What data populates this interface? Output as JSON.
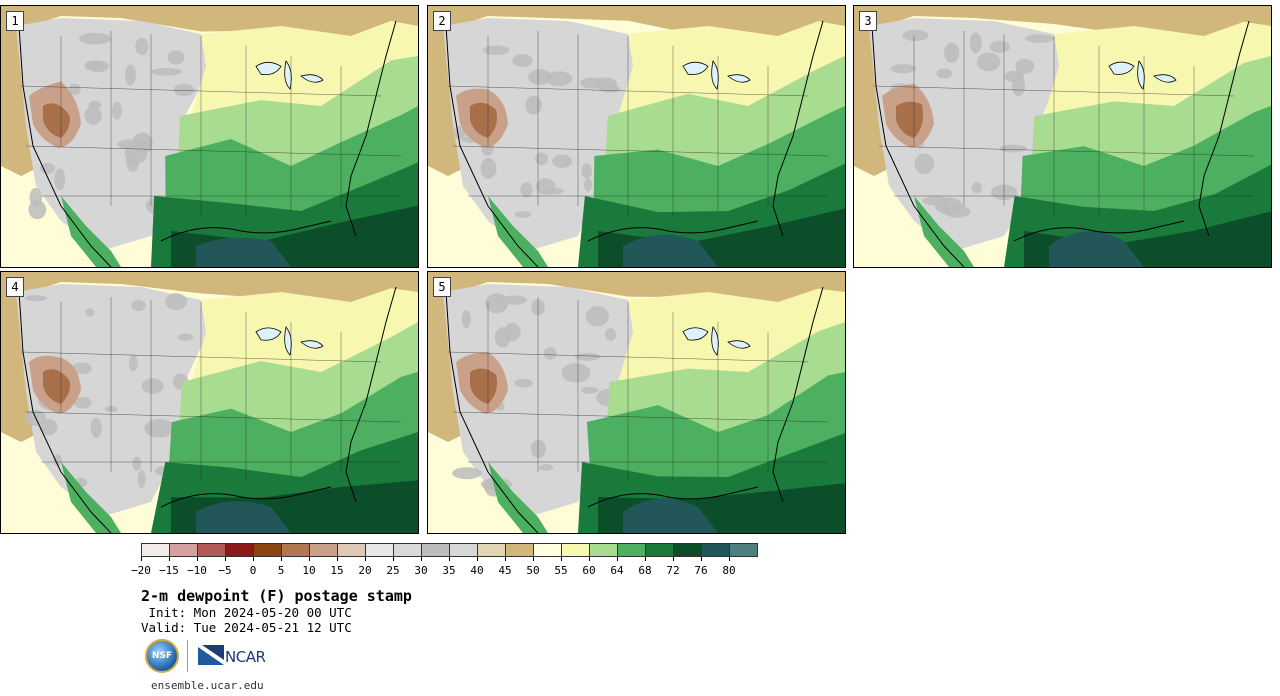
{
  "panels": [
    {
      "label": "1"
    },
    {
      "label": "2"
    },
    {
      "label": "3"
    },
    {
      "label": "4"
    },
    {
      "label": "5"
    }
  ],
  "colorbar": {
    "colors": [
      "#f4ebeb",
      "#d4a0a0",
      "#b35a5a",
      "#8c1a1a",
      "#8b4513",
      "#b07850",
      "#c9a088",
      "#e0c8b8",
      "#e8e8e8",
      "#dadada",
      "#bcbcbc",
      "#d8d8d8",
      "#e2d5b5",
      "#d2b77c",
      "#fffee0",
      "#f7f7b0",
      "#a8dc90",
      "#4cb060",
      "#1a7a3c",
      "#0c4e2a",
      "#225658",
      "#4d7e80"
    ],
    "ticks": [
      "−20",
      "−15",
      "−10",
      "−5",
      "0",
      "5",
      "10",
      "15",
      "20",
      "25",
      "30",
      "35",
      "40",
      "45",
      "50",
      "55",
      "60",
      "64",
      "68",
      "72",
      "76",
      "80"
    ]
  },
  "title": "2-m dewpoint (F) postage stamp",
  "init_line": " Init: Mon 2024-05-20 00 UTC",
  "valid_line": "Valid: Tue 2024-05-21 12 UTC",
  "logos": {
    "nsf": "NSF",
    "ncar": "NCAR"
  },
  "site": "ensemble.ucar.edu"
}
